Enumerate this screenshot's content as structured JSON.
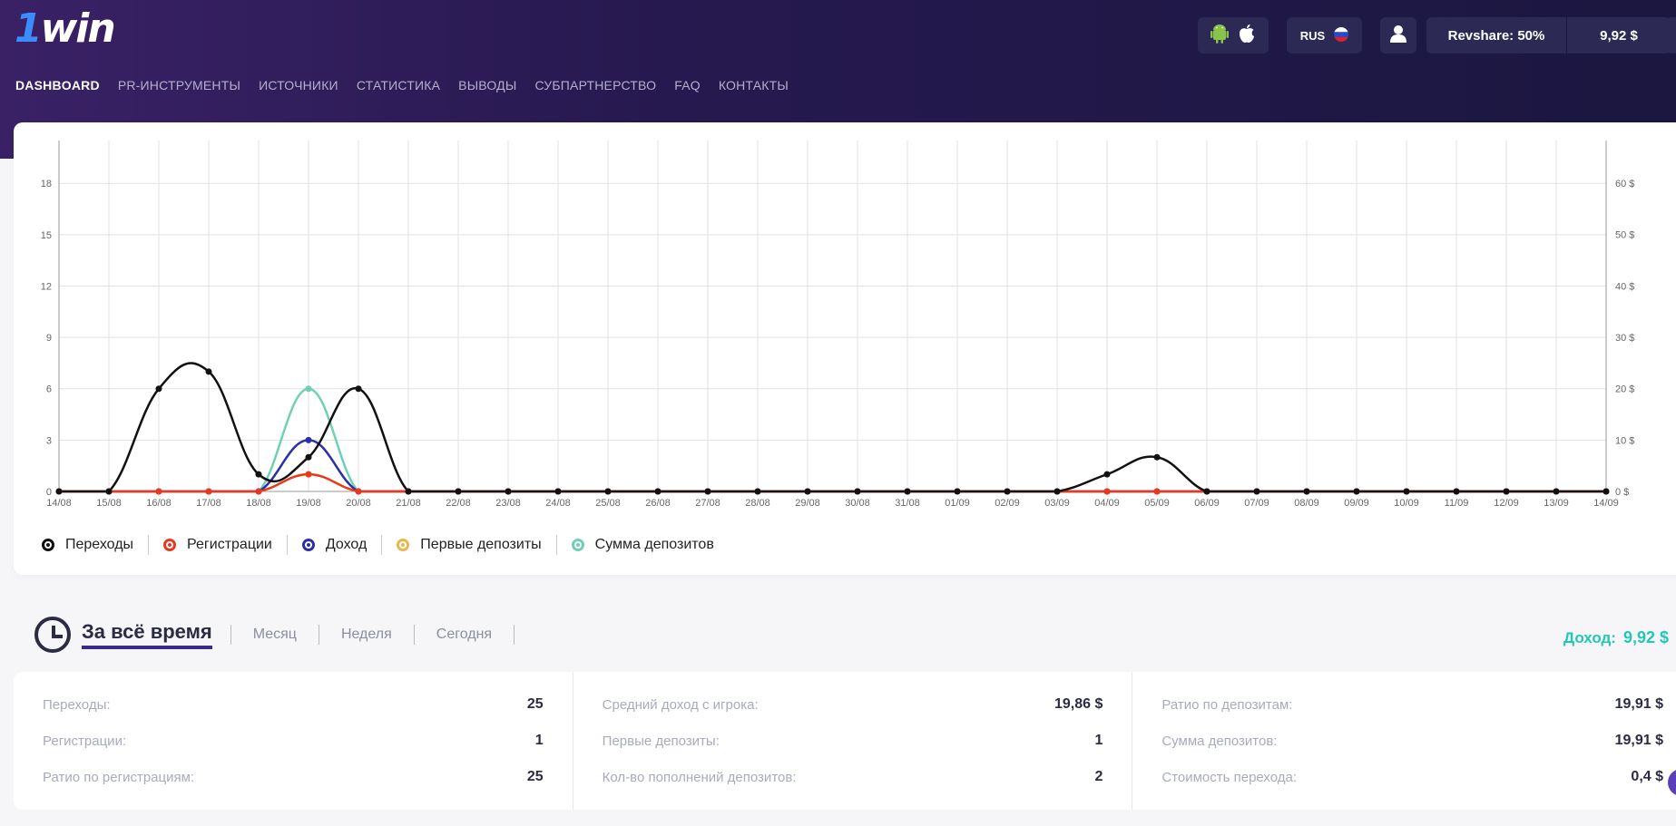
{
  "header": {
    "logo": "1win",
    "nav": [
      "DASHBOARD",
      "PR-ИНСТРУМЕНТЫ",
      "ИСТОЧНИКИ",
      "СТАТИСТИКА",
      "ВЫВОДЫ",
      "СУБПАРТНЕРСТВО",
      "FAQ",
      "КОНТАКТЫ"
    ],
    "lang": "RUS",
    "revshare": "Revshare: 50%",
    "balance": "9,92 $",
    "icons": [
      "android-icon",
      "apple-icon",
      "russia-flag-icon",
      "user-icon"
    ]
  },
  "chart_data": {
    "type": "line",
    "categories": [
      "14/08",
      "15/08",
      "16/08",
      "17/08",
      "18/08",
      "19/08",
      "20/08",
      "21/08",
      "22/08",
      "23/08",
      "24/08",
      "25/08",
      "26/08",
      "27/08",
      "28/08",
      "29/08",
      "30/08",
      "31/08",
      "01/09",
      "02/09",
      "03/09",
      "04/09",
      "05/09",
      "06/09",
      "07/09",
      "08/09",
      "09/09",
      "10/09",
      "11/09",
      "12/09",
      "13/09",
      "14/09"
    ],
    "y_left": {
      "ticks": [
        "0",
        "3",
        "6",
        "9",
        "12",
        "15",
        "18"
      ],
      "range": [
        0,
        20.5
      ]
    },
    "y_right": {
      "ticks": [
        "0 $",
        "10 $",
        "20 $",
        "30 $",
        "40 $",
        "50 $",
        "60 $"
      ],
      "range": [
        0,
        68.3
      ]
    },
    "grid": true,
    "legend_position": "bottom-left",
    "series": [
      {
        "name": "Переходы",
        "color": "#111111",
        "axis": "left",
        "values": [
          0,
          0,
          6,
          7,
          1,
          2,
          6,
          0,
          0,
          0,
          0,
          0,
          0,
          0,
          0,
          0,
          0,
          0,
          0,
          0,
          0,
          1,
          2,
          0,
          0,
          0,
          0,
          0,
          0,
          0,
          0,
          0
        ]
      },
      {
        "name": "Регистрации",
        "color": "#e8391d",
        "axis": "left",
        "values": [
          0,
          0,
          0,
          0,
          0,
          1,
          0,
          0,
          0,
          0,
          0,
          0,
          0,
          0,
          0,
          0,
          0,
          0,
          0,
          0,
          0,
          0,
          0,
          0,
          0,
          0,
          0,
          0,
          0,
          0,
          0,
          0
        ]
      },
      {
        "name": "Доход",
        "color": "#2b2fa8",
        "axis": "left",
        "values": [
          0,
          0,
          0,
          0,
          0,
          3,
          0,
          0,
          0,
          0,
          0,
          0,
          0,
          0,
          0,
          0,
          0,
          0,
          0,
          0,
          0,
          0,
          0,
          0,
          0,
          0,
          0,
          0,
          0,
          0,
          0,
          0
        ]
      },
      {
        "name": "Первые депозиты",
        "color": "#e8b84a",
        "axis": "left",
        "values": [
          0,
          0,
          0,
          0,
          0,
          1,
          0,
          0,
          0,
          0,
          0,
          0,
          0,
          0,
          0,
          0,
          0,
          0,
          0,
          0,
          0,
          0,
          0,
          0,
          0,
          0,
          0,
          0,
          0,
          0,
          0,
          0
        ]
      },
      {
        "name": "Сумма депозитов",
        "color": "#6fd0b5",
        "axis": "left",
        "values": [
          0,
          0,
          0,
          0,
          0,
          6,
          0,
          0,
          0,
          0,
          0,
          0,
          0,
          0,
          0,
          0,
          0,
          0,
          0,
          0,
          0,
          0,
          0,
          0,
          0,
          0,
          0,
          0,
          0,
          0,
          0,
          0
        ]
      }
    ]
  },
  "period": {
    "selected": "За всё время",
    "options": [
      "Месяц",
      "Неделя",
      "Сегодня"
    ],
    "income_label": "Доход:",
    "income_value": "9,92 $"
  },
  "stats": {
    "col1": [
      {
        "label": "Переходы:",
        "value": "25"
      },
      {
        "label": "Регистрации:",
        "value": "1"
      },
      {
        "label": "Ратио по регистрациям:",
        "value": "25"
      }
    ],
    "col2": [
      {
        "label": "Средний доход с игрока:",
        "value": "19,86 $"
      },
      {
        "label": "Первые депозиты:",
        "value": "1"
      },
      {
        "label": "Кол-во пополнений депозитов:",
        "value": "2"
      }
    ],
    "col3": [
      {
        "label": "Ратио по депозитам:",
        "value": "19,91 $"
      },
      {
        "label": "Сумма депозитов:",
        "value": "19,91 $"
      },
      {
        "label": "Стоимость перехода:",
        "value": "0,4 $"
      }
    ]
  }
}
